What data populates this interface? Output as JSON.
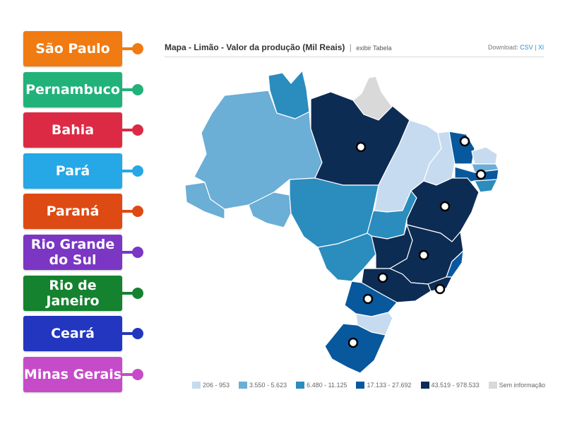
{
  "labels": [
    {
      "text": "São Paulo",
      "color": "#f07b12",
      "knob": "#f07b12"
    },
    {
      "text": "Pernambuco",
      "color": "#21b27a",
      "knob": "#21b27a"
    },
    {
      "text": "Bahia",
      "color": "#dc2a45",
      "knob": "#dc2a45"
    },
    {
      "text": "Pará",
      "color": "#26a7e6",
      "knob": "#26a7e6"
    },
    {
      "text": "Paraná",
      "color": "#de4a14",
      "knob": "#de4a14"
    },
    {
      "text": "Rio Grande do Sul",
      "color": "#7b36c4",
      "knob": "#7b36c4"
    },
    {
      "text": "Rio de Janeiro",
      "color": "#14822f",
      "knob": "#14822f"
    },
    {
      "text": "Ceará",
      "color": "#2236c0",
      "knob": "#2236c0"
    },
    {
      "text": "Minas Gerais",
      "color": "#c64bc9",
      "knob": "#c64bc9"
    }
  ],
  "map": {
    "title": "Mapa - Limão - Valor da produção (Mil Reais)",
    "separator": "|",
    "table_link": "exibir Tabela",
    "download_label": "Download:",
    "download_csv": "CSV",
    "download_sep": "|",
    "download_xls": "Xl"
  },
  "legend": [
    {
      "label": "206 - 953",
      "color": "#c6dbef"
    },
    {
      "label": "3.550 - 5.623",
      "color": "#6baed6"
    },
    {
      "label": "6.480 - 11.125",
      "color": "#2b8cbe"
    },
    {
      "label": "17.133 - 27.692",
      "color": "#08589e"
    },
    {
      "label": "43.519 - 978.533",
      "color": "#0d2c54"
    },
    {
      "label": "Sem informação",
      "color": "#d9d9d9"
    }
  ]
}
